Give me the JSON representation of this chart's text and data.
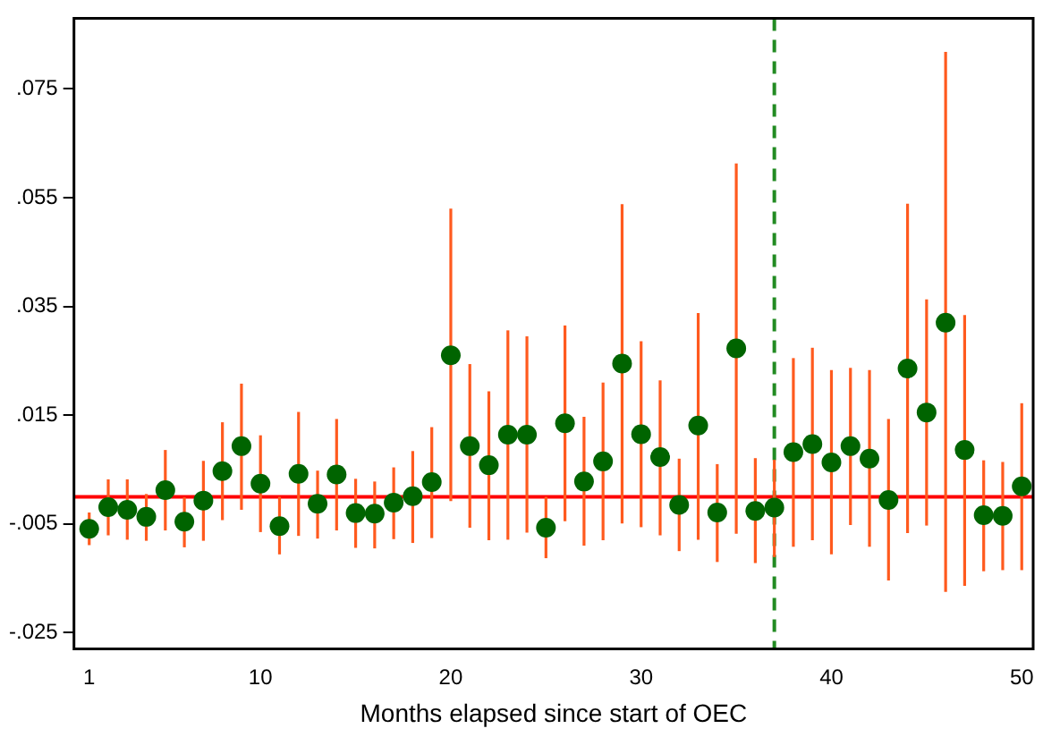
{
  "chart_data": {
    "type": "scatter",
    "xlabel": "Months elapsed since start of OEC",
    "x": [
      1,
      2,
      3,
      4,
      5,
      6,
      7,
      8,
      9,
      10,
      11,
      12,
      13,
      14,
      15,
      16,
      17,
      18,
      19,
      20,
      21,
      22,
      23,
      24,
      25,
      26,
      27,
      28,
      29,
      30,
      31,
      32,
      33,
      34,
      35,
      36,
      37,
      38,
      39,
      40,
      41,
      42,
      43,
      44,
      45,
      46,
      47,
      48,
      49,
      50
    ],
    "series": [
      {
        "color": "#006400",
        "values": [
          -0.0059,
          -0.0019,
          -0.0024,
          -0.0037,
          0.0012,
          -0.0046,
          -0.0007,
          0.0047,
          0.0093,
          0.0024,
          -0.0054,
          0.0042,
          -0.0013,
          0.0041,
          -0.003,
          -0.0031,
          -0.0011,
          0.0001,
          0.0027,
          0.026,
          0.0093,
          0.0058,
          0.0114,
          0.0114,
          -0.0057,
          0.0135,
          0.0028,
          0.0065,
          0.0245,
          0.0115,
          0.0073,
          -0.0015,
          0.0131,
          -0.0029,
          0.0273,
          -0.0026,
          -0.002,
          0.0082,
          0.0097,
          0.0063,
          0.0093,
          0.007,
          -0.0006,
          0.0236,
          0.0155,
          0.032,
          0.0086,
          -0.0034,
          -0.0035,
          0.0019
        ],
        "errors": [
          [
            -0.0089,
            -0.0029
          ],
          [
            -0.0071,
            0.0032
          ],
          [
            -0.0079,
            0.0032
          ],
          [
            -0.0081,
            0.0005
          ],
          [
            -0.0062,
            0.0086
          ],
          [
            -0.0093,
            -0.0001
          ],
          [
            -0.0081,
            0.0066
          ],
          [
            -0.0043,
            0.0137
          ],
          [
            -0.0024,
            0.0208
          ],
          [
            -0.0065,
            0.0113
          ],
          [
            -0.0106,
            0.0
          ],
          [
            -0.0072,
            0.0156
          ],
          [
            -0.0077,
            0.0048
          ],
          [
            -0.0062,
            0.0143
          ],
          [
            -0.0094,
            0.0033
          ],
          [
            -0.0095,
            0.0028
          ],
          [
            -0.0078,
            0.0054
          ],
          [
            -0.0085,
            0.0084
          ],
          [
            -0.0076,
            0.0128
          ],
          [
            -0.0008,
            0.053
          ],
          [
            -0.0057,
            0.0244
          ],
          [
            -0.008,
            0.0194
          ],
          [
            -0.0079,
            0.0306
          ],
          [
            -0.0066,
            0.0295
          ],
          [
            -0.0113,
            0.0
          ],
          [
            -0.0045,
            0.0315
          ],
          [
            -0.009,
            0.0147
          ],
          [
            -0.008,
            0.021
          ],
          [
            -0.0049,
            0.0538
          ],
          [
            -0.0056,
            0.0286
          ],
          [
            -0.0071,
            0.0214
          ],
          [
            -0.01,
            0.007
          ],
          [
            -0.0079,
            0.0338
          ],
          [
            -0.012,
            0.006
          ],
          [
            -0.0068,
            0.0613
          ],
          [
            -0.0122,
            0.0071
          ],
          [
            -0.0111,
            0.0068
          ],
          [
            -0.0092,
            0.0255
          ],
          [
            -0.008,
            0.0274
          ],
          [
            -0.0106,
            0.0233
          ],
          [
            -0.0052,
            0.0237
          ],
          [
            -0.0092,
            0.0233
          ],
          [
            -0.0154,
            0.0143
          ],
          [
            -0.0067,
            0.0539
          ],
          [
            -0.0053,
            0.0363
          ],
          [
            -0.0175,
            0.0818
          ],
          [
            -0.0164,
            0.0334
          ],
          [
            -0.0137,
            0.0067
          ],
          [
            -0.0135,
            0.0064
          ],
          [
            -0.0135,
            0.0172
          ]
        ]
      }
    ],
    "marker": "circle",
    "xlim": [
      0.2,
      50.6
    ],
    "xticks": [
      1,
      10,
      20,
      30,
      40,
      50
    ],
    "ylim": [
      -0.028,
      0.088
    ],
    "yticks": [
      {
        "value": -0.025,
        "label": "-.025"
      },
      {
        "value": -0.005,
        "label": "-.005"
      },
      {
        "value": 0.015,
        "label": ".015"
      },
      {
        "value": 0.035,
        "label": ".035"
      },
      {
        "value": 0.055,
        "label": ".055"
      },
      {
        "value": 0.075,
        "label": ".075"
      }
    ],
    "grid": false,
    "legend": false,
    "ref_lines": [
      {
        "axis": "y",
        "value": 0,
        "color": "#ff0000",
        "line_style": "solid"
      },
      {
        "axis": "x",
        "value": 37,
        "color": "#228b22",
        "line_style": "dashed"
      }
    ]
  }
}
